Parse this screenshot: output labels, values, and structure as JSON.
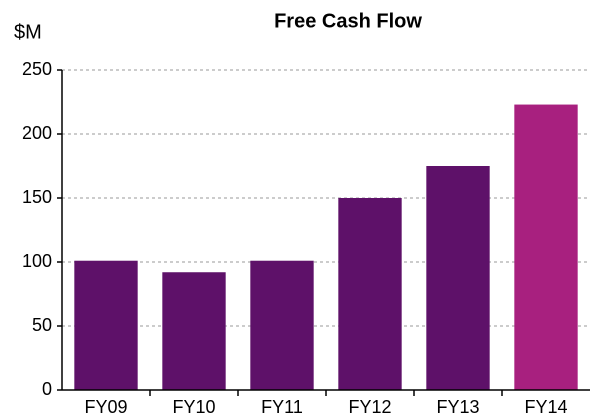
{
  "chart_data": {
    "type": "bar",
    "title": "Free Cash Flow",
    "y_label": "$M",
    "categories": [
      "FY09",
      "FY10",
      "FY11",
      "FY12",
      "FY13",
      "FY14"
    ],
    "values": [
      101,
      92,
      101,
      150,
      175,
      223
    ],
    "colors": [
      "#5e1169",
      "#5e1169",
      "#5e1169",
      "#5e1169",
      "#5e1169",
      "#a8207f"
    ],
    "ylim": [
      0,
      250
    ],
    "yticks": [
      0,
      50,
      100,
      150,
      200,
      250
    ],
    "grid": true
  }
}
